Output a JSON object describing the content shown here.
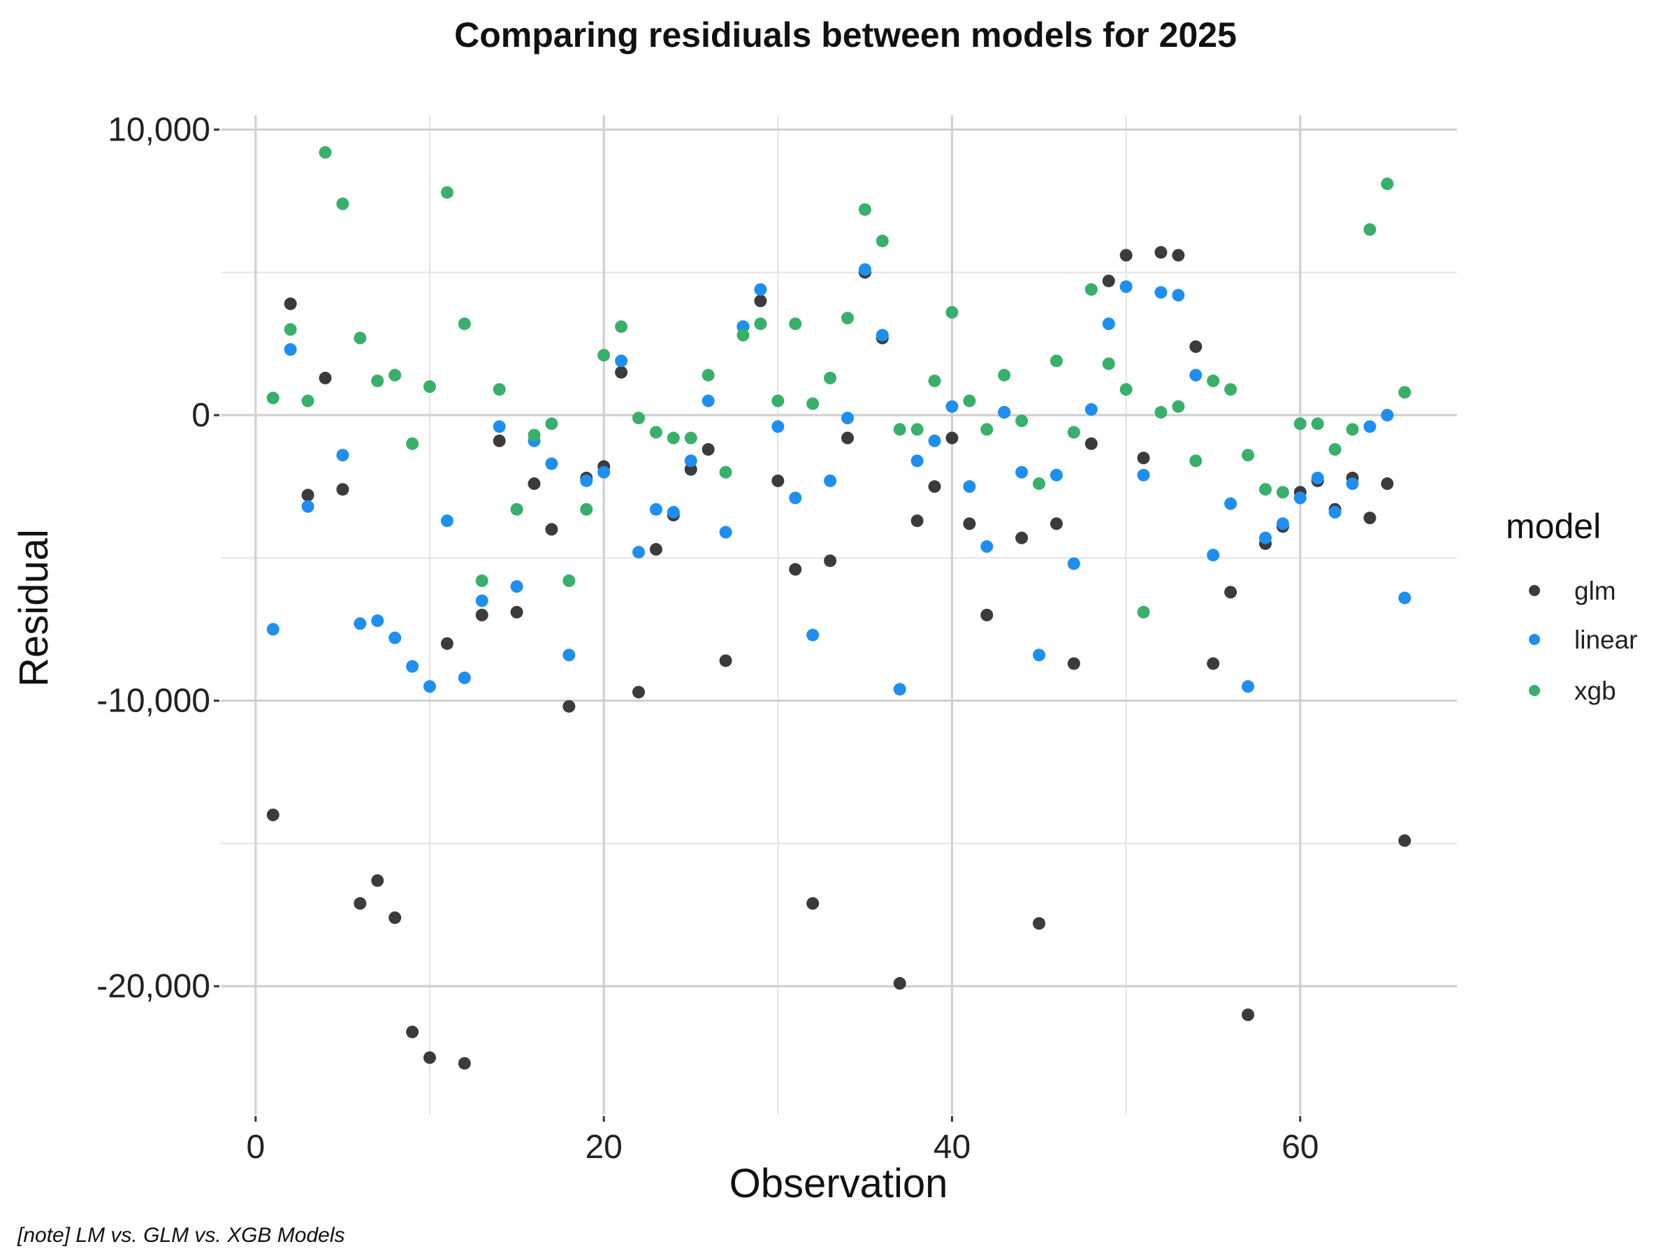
{
  "chart_data": {
    "type": "scatter",
    "title": "Comparing residiuals between models for 2025",
    "xlabel": "Observation",
    "ylabel": "Residual",
    "caption": "[note] LM vs. GLM vs. XGB Models",
    "xlim": [
      -2,
      69
    ],
    "ylim": [
      -24500,
      10500
    ],
    "x_ticks": [
      0,
      20,
      40,
      60
    ],
    "x_tick_labels": [
      "0",
      "20",
      "40",
      "60"
    ],
    "y_ticks": [
      10000,
      0,
      -10000,
      -20000
    ],
    "y_tick_labels": [
      "10,000",
      "0",
      "-10,000",
      "-20,000"
    ],
    "grid": true,
    "legend": {
      "title": "model",
      "position": "right"
    },
    "series": [
      {
        "name": "glm",
        "color": "#3b3b3b",
        "points": [
          [
            1,
            -14000
          ],
          [
            2,
            3900
          ],
          [
            3,
            -2800
          ],
          [
            4,
            1300
          ],
          [
            5,
            -2600
          ],
          [
            6,
            -17100
          ],
          [
            7,
            -16300
          ],
          [
            8,
            -17600
          ],
          [
            9,
            -21600
          ],
          [
            10,
            -22500
          ],
          [
            11,
            -8000
          ],
          [
            12,
            -22700
          ],
          [
            13,
            -7000
          ],
          [
            14,
            -900
          ],
          [
            15,
            -6900
          ],
          [
            16,
            -2400
          ],
          [
            17,
            -4000
          ],
          [
            18,
            -10200
          ],
          [
            19,
            -2200
          ],
          [
            20,
            -1800
          ],
          [
            21,
            1500
          ],
          [
            22,
            -9700
          ],
          [
            23,
            -4700
          ],
          [
            24,
            -3500
          ],
          [
            25,
            -1900
          ],
          [
            26,
            -1200
          ],
          [
            27,
            -8600
          ],
          [
            28,
            3100
          ],
          [
            29,
            4000
          ],
          [
            30,
            -2300
          ],
          [
            31,
            -5400
          ],
          [
            32,
            -17100
          ],
          [
            33,
            -5100
          ],
          [
            34,
            -800
          ],
          [
            35,
            5000
          ],
          [
            36,
            2700
          ],
          [
            37,
            -19900
          ],
          [
            38,
            -3700
          ],
          [
            39,
            -2500
          ],
          [
            40,
            -800
          ],
          [
            41,
            -3800
          ],
          [
            42,
            -7000
          ],
          [
            43,
            100
          ],
          [
            44,
            -4300
          ],
          [
            45,
            -17800
          ],
          [
            46,
            -3800
          ],
          [
            47,
            -8700
          ],
          [
            48,
            -1000
          ],
          [
            49,
            4700
          ],
          [
            50,
            5600
          ],
          [
            51,
            -1500
          ],
          [
            52,
            5700
          ],
          [
            53,
            5600
          ],
          [
            54,
            2400
          ],
          [
            55,
            -8700
          ],
          [
            56,
            -6200
          ],
          [
            57,
            -21000
          ],
          [
            58,
            -4500
          ],
          [
            59,
            -3900
          ],
          [
            60,
            -2700
          ],
          [
            61,
            -2300
          ],
          [
            62,
            -3300
          ],
          [
            63,
            -2200
          ],
          [
            64,
            -3600
          ],
          [
            65,
            -2400
          ],
          [
            66,
            -14900
          ]
        ]
      },
      {
        "name": "linear",
        "color": "#1e8ff0",
        "points": [
          [
            1,
            -7500
          ],
          [
            2,
            2300
          ],
          [
            3,
            -3200
          ],
          [
            5,
            -1400
          ],
          [
            6,
            -7300
          ],
          [
            7,
            -7200
          ],
          [
            8,
            -7800
          ],
          [
            9,
            -8800
          ],
          [
            10,
            -9500
          ],
          [
            11,
            -3700
          ],
          [
            12,
            -9200
          ],
          [
            13,
            -6500
          ],
          [
            14,
            -400
          ],
          [
            15,
            -6000
          ],
          [
            16,
            -900
          ],
          [
            17,
            -1700
          ],
          [
            18,
            -8400
          ],
          [
            19,
            -2300
          ],
          [
            20,
            -2000
          ],
          [
            21,
            1900
          ],
          [
            22,
            -4800
          ],
          [
            23,
            -3300
          ],
          [
            24,
            -3400
          ],
          [
            25,
            -1600
          ],
          [
            26,
            500
          ],
          [
            27,
            -4100
          ],
          [
            28,
            3100
          ],
          [
            29,
            4400
          ],
          [
            30,
            -400
          ],
          [
            31,
            -2900
          ],
          [
            32,
            -7700
          ],
          [
            33,
            -2300
          ],
          [
            34,
            -100
          ],
          [
            35,
            5100
          ],
          [
            36,
            2800
          ],
          [
            37,
            -9600
          ],
          [
            38,
            -1600
          ],
          [
            39,
            -900
          ],
          [
            40,
            300
          ],
          [
            41,
            -2500
          ],
          [
            42,
            -4600
          ],
          [
            43,
            100
          ],
          [
            44,
            -2000
          ],
          [
            45,
            -8400
          ],
          [
            46,
            -2100
          ],
          [
            47,
            -5200
          ],
          [
            48,
            200
          ],
          [
            49,
            3200
          ],
          [
            50,
            4500
          ],
          [
            51,
            -2100
          ],
          [
            52,
            4300
          ],
          [
            53,
            4200
          ],
          [
            54,
            1400
          ],
          [
            55,
            -4900
          ],
          [
            56,
            -3100
          ],
          [
            57,
            -9500
          ],
          [
            58,
            -4300
          ],
          [
            59,
            -3800
          ],
          [
            60,
            -2900
          ],
          [
            61,
            -2200
          ],
          [
            62,
            -3400
          ],
          [
            63,
            -2400
          ],
          [
            64,
            -400
          ],
          [
            65,
            0
          ],
          [
            66,
            -6400
          ]
        ]
      },
      {
        "name": "xgb",
        "color": "#38b06a",
        "points": [
          [
            1,
            600
          ],
          [
            2,
            3000
          ],
          [
            3,
            500
          ],
          [
            4,
            9200
          ],
          [
            5,
            7400
          ],
          [
            6,
            2700
          ],
          [
            7,
            1200
          ],
          [
            8,
            1400
          ],
          [
            9,
            -1000
          ],
          [
            10,
            1000
          ],
          [
            11,
            7800
          ],
          [
            12,
            3200
          ],
          [
            13,
            -5800
          ],
          [
            14,
            900
          ],
          [
            15,
            -3300
          ],
          [
            16,
            -700
          ],
          [
            17,
            -300
          ],
          [
            18,
            -5800
          ],
          [
            19,
            -3300
          ],
          [
            20,
            2100
          ],
          [
            21,
            3100
          ],
          [
            22,
            -100
          ],
          [
            23,
            -600
          ],
          [
            24,
            -800
          ],
          [
            25,
            -800
          ],
          [
            26,
            1400
          ],
          [
            27,
            -2000
          ],
          [
            28,
            2800
          ],
          [
            29,
            3200
          ],
          [
            30,
            500
          ],
          [
            31,
            3200
          ],
          [
            32,
            400
          ],
          [
            33,
            1300
          ],
          [
            34,
            3400
          ],
          [
            35,
            7200
          ],
          [
            36,
            6100
          ],
          [
            37,
            -500
          ],
          [
            38,
            -500
          ],
          [
            39,
            1200
          ],
          [
            40,
            3600
          ],
          [
            41,
            500
          ],
          [
            42,
            -500
          ],
          [
            43,
            1400
          ],
          [
            44,
            -200
          ],
          [
            45,
            -2400
          ],
          [
            46,
            1900
          ],
          [
            47,
            -600
          ],
          [
            48,
            4400
          ],
          [
            49,
            1800
          ],
          [
            50,
            900
          ],
          [
            51,
            -6900
          ],
          [
            52,
            100
          ],
          [
            53,
            300
          ],
          [
            54,
            -1600
          ],
          [
            55,
            1200
          ],
          [
            56,
            900
          ],
          [
            57,
            -1400
          ],
          [
            58,
            -2600
          ],
          [
            59,
            -2700
          ],
          [
            60,
            -300
          ],
          [
            61,
            -300
          ],
          [
            62,
            -1200
          ],
          [
            63,
            -500
          ],
          [
            64,
            6500
          ],
          [
            65,
            8100
          ],
          [
            66,
            800
          ]
        ]
      }
    ]
  }
}
